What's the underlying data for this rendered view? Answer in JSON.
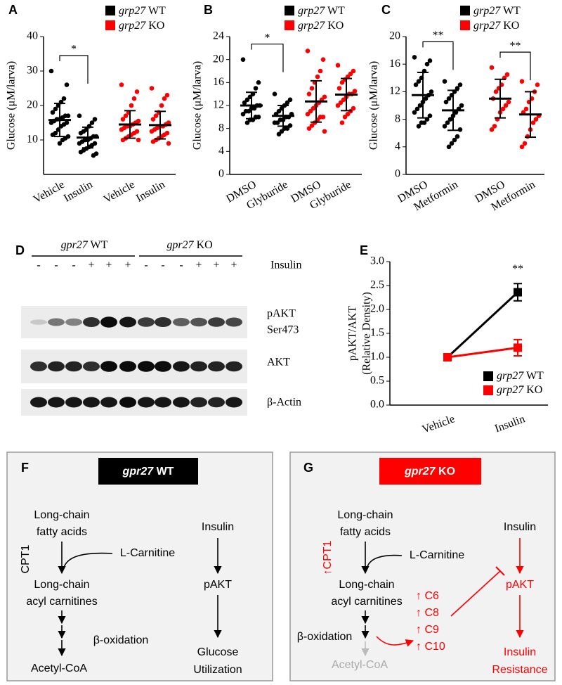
{
  "chart_data": [
    {
      "type": "strip",
      "label": "A",
      "ylabel": "Glucose (μM/larva)",
      "ylim": [
        0,
        40
      ],
      "yticks": [
        10,
        20,
        30,
        40
      ],
      "series": [
        {
          "name": "grp27 WT",
          "color": "#000000"
        },
        {
          "name": "grp27 KO",
          "color": "#ff0000"
        }
      ],
      "groups": [
        {
          "category": "Vehicle",
          "series": 0,
          "mean": 15.8,
          "sd": 4.8,
          "points": [
            30,
            26,
            22,
            21,
            20,
            19,
            18,
            17,
            17,
            16.5,
            16,
            16,
            15.5,
            15,
            15,
            14.5,
            14,
            13,
            12,
            11.5,
            11,
            10.5,
            10,
            9
          ]
        },
        {
          "category": "Insulin",
          "series": 0,
          "mean": 10.7,
          "sd": 3,
          "points": [
            17,
            16,
            15,
            14,
            13,
            12.5,
            12,
            11,
            11,
            10.5,
            10,
            10,
            9.5,
            9,
            9,
            8.5,
            8,
            7.5,
            7,
            6.5,
            6,
            5.5
          ]
        },
        {
          "category": "Vehicle",
          "series": 1,
          "mean": 14.5,
          "sd": 4,
          "points": [
            26,
            24,
            22,
            20,
            18,
            17,
            16,
            15.5,
            15,
            14.5,
            14,
            14,
            13.5,
            13,
            12.5,
            12,
            11.5,
            11,
            10.5,
            10,
            10
          ]
        },
        {
          "category": "Insulin",
          "series": 1,
          "mean": 14.3,
          "sd": 4,
          "points": [
            25,
            23,
            22,
            20,
            18,
            17,
            16,
            15,
            14.5,
            14,
            14,
            13.5,
            13,
            12.5,
            12,
            11.5,
            11,
            10.5,
            10,
            9.5,
            9
          ]
        }
      ],
      "annotations": [
        {
          "text": "*",
          "groups": [
            0,
            1
          ]
        }
      ]
    },
    {
      "type": "strip",
      "label": "B",
      "ylabel": "Glucose (μM/larva)",
      "ylim": [
        0,
        24
      ],
      "yticks": [
        0,
        4,
        8,
        12,
        16,
        20,
        24
      ],
      "series": [
        {
          "name": "grp27 WT",
          "color": "#000000"
        },
        {
          "name": "grp27 KO",
          "color": "#ff0000"
        }
      ],
      "groups": [
        {
          "category": "DMSO",
          "series": 0,
          "mean": 12,
          "sd": 2.3,
          "points": [
            20,
            16,
            15,
            14,
            13.5,
            13,
            12.5,
            12,
            12,
            11.5,
            11.5,
            11,
            11,
            10.5,
            10,
            10,
            9.5,
            9.5,
            9
          ]
        },
        {
          "category": "Glyburide",
          "series": 0,
          "mean": 10.2,
          "sd": 1.8,
          "points": [
            14,
            13,
            12.5,
            12,
            11.5,
            11,
            10.5,
            10.5,
            10,
            10,
            9.5,
            9.5,
            9,
            9,
            8.5,
            8,
            8,
            7.5,
            7
          ]
        },
        {
          "category": "DMSO",
          "series": 1,
          "mean": 12.7,
          "sd": 3.6,
          "points": [
            21.5,
            20,
            18,
            17,
            16,
            15,
            14,
            13.5,
            13,
            12.5,
            12,
            11.5,
            11,
            10.5,
            10,
            10,
            9.5,
            9,
            8.5,
            8,
            7.5
          ]
        },
        {
          "category": "Glyburide",
          "series": 1,
          "mean": 13.9,
          "sd": 2.8,
          "points": [
            19,
            18,
            17.5,
            17,
            16.5,
            16,
            15,
            14.5,
            14,
            14,
            13.5,
            13,
            12.5,
            12,
            11.5,
            11,
            10.5,
            10,
            9
          ]
        }
      ],
      "annotations": [
        {
          "text": "*",
          "groups": [
            0,
            1
          ]
        }
      ]
    },
    {
      "type": "strip",
      "label": "C",
      "ylabel": "Glucose (μM/larva)",
      "ylim": [
        0,
        20
      ],
      "yticks": [
        0,
        4,
        8,
        12,
        16,
        20
      ],
      "series": [
        {
          "name": "grp27 WT",
          "color": "#000000"
        },
        {
          "name": "grp27 KO",
          "color": "#ff0000"
        }
      ],
      "groups": [
        {
          "category": "DMSO",
          "series": 0,
          "mean": 11.5,
          "sd": 3.3,
          "points": [
            17,
            16.5,
            16,
            15,
            14,
            13.5,
            13,
            12,
            11.5,
            11,
            10.5,
            10,
            9.5,
            9,
            8.5,
            8,
            7.5,
            7.5,
            7
          ]
        },
        {
          "category": "Metformin",
          "series": 0,
          "mean": 9.3,
          "sd": 2.9,
          "points": [
            13.5,
            13,
            12.5,
            12,
            11.5,
            11,
            10.5,
            10,
            9.5,
            9,
            8.5,
            8,
            7.5,
            7,
            6.5,
            5.5,
            5,
            4.5,
            4
          ]
        },
        {
          "category": "DMSO",
          "series": 1,
          "mean": 11,
          "sd": 2.8,
          "points": [
            15.5,
            14.5,
            14,
            13,
            12.5,
            12,
            11,
            10.5,
            10,
            9.5,
            9,
            8,
            7,
            6.5
          ]
        },
        {
          "category": "Metformin",
          "series": 1,
          "mean": 8.7,
          "sd": 3.3,
          "points": [
            13.5,
            13,
            12,
            11,
            10.5,
            9.5,
            9,
            8.5,
            8,
            7.5,
            6.5,
            5.5,
            4.5,
            4
          ]
        }
      ],
      "annotations": [
        {
          "text": "**",
          "groups": [
            0,
            1
          ]
        },
        {
          "text": "**",
          "groups": [
            2,
            3
          ]
        }
      ]
    },
    {
      "type": "line",
      "label": "E",
      "ylabel": [
        "pAKT/AKT",
        "(Relative Density)"
      ],
      "categories": [
        "Vehicle",
        "Insulin"
      ],
      "ylim": [
        0,
        3
      ],
      "yticks": [
        {
          "value": 0,
          "label": "0.0"
        },
        {
          "value": 0.5,
          "label": "0.5"
        },
        {
          "value": 1,
          "label": "1.0"
        },
        {
          "value": 1.5,
          "label": "1.5"
        },
        {
          "value": 2,
          "label": "2.0"
        },
        {
          "value": 2.5,
          "label": "2.5"
        },
        {
          "value": 3,
          "label": "3.0"
        }
      ],
      "series": [
        {
          "name": "grp27 WT",
          "color": "#000000",
          "values": [
            1,
            2.36
          ],
          "errors": [
            0.05,
            0.18
          ]
        },
        {
          "name": "grp27 KO",
          "color": "#ff0000",
          "values": [
            1,
            1.2
          ],
          "errors": [
            0.05,
            0.17
          ]
        }
      ],
      "legend": "lower right",
      "annotations": [
        {
          "text": "**",
          "category": 1
        }
      ]
    }
  ],
  "blot": {
    "label": "D",
    "groups": [
      "gpr27 WT",
      "gpr27 KO"
    ],
    "treatment": "Insulin",
    "signs": [
      "-",
      "-",
      "-",
      "+",
      "+",
      "+",
      "-",
      "-",
      "-",
      "+",
      "+",
      "+"
    ],
    "rows": [
      [
        "pAKT",
        "Ser473"
      ],
      [
        "AKT"
      ],
      [
        "β-Actin"
      ]
    ]
  },
  "diagram_f": {
    "label": "F",
    "title": "gpr27 WT",
    "fatty_acids": [
      "Long-chain",
      "fatty acids"
    ],
    "enzyme": "CPT1",
    "cofactor": "L-Carnitine",
    "acyl": [
      "Long-chain",
      "acyl carnitines"
    ],
    "process": "β-oxidation",
    "product": "Acetyl-CoA",
    "signal": "Insulin",
    "kinase": "pAKT",
    "outcome": [
      "Glucose",
      "Utilization"
    ]
  },
  "diagram_g": {
    "label": "G",
    "title": "gpr27 KO",
    "fatty_acids": [
      "Long-chain",
      "fatty acids"
    ],
    "enzyme": "↑CPT1",
    "cofactor": "L-Carnitine",
    "acyl": [
      "Long-chain",
      "acyl carnitines"
    ],
    "process": "β-oxidation",
    "product": "Acetyl-CoA",
    "metabolites": [
      "↑ C6",
      "↑ C8",
      "↑ C9",
      "↑ C10"
    ],
    "signal": "Insulin",
    "kinase": "pAKT",
    "outcome": [
      "Insulin",
      "Resistance"
    ]
  }
}
